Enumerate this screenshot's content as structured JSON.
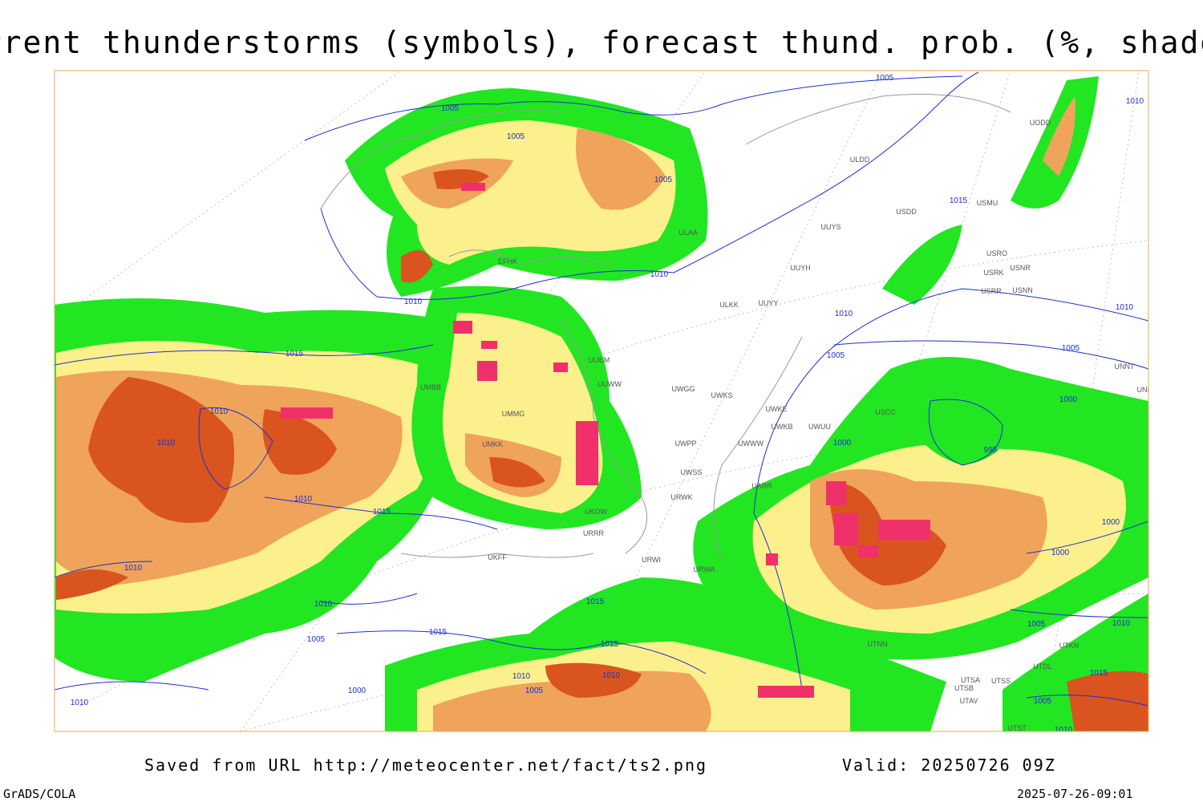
{
  "header": {
    "title": "Current thunderstorms (symbols), forecast thund. prob. (%, shaded)"
  },
  "footer": {
    "source": "Saved from URL http://meteocenter.net/fact/ts2.png",
    "valid": "Valid: 20250726 09Z",
    "software": "GrADS/COLA",
    "timestamp": "2025-07-26-09:01"
  },
  "map": {
    "isobar_labels": [
      1005,
      1010,
      1005,
      1005,
      1005,
      1015,
      1010,
      1010,
      1010,
      1010,
      1015,
      1005,
      1005,
      1000,
      1010,
      1010,
      1000,
      995,
      1010,
      1015,
      1000,
      1000,
      1010,
      1010,
      1015,
      1015,
      1005,
      1015,
      1005,
      1010,
      1015,
      1010,
      1010,
      1005,
      1000,
      1010,
      1005,
      1010
    ],
    "station_labels": [
      "UODD",
      "ULDD",
      "USDD",
      "USMU",
      "UUYS",
      "ULAA",
      "UUYH",
      "USRO",
      "USRK",
      "USNR",
      "USRR",
      "USNN",
      "ULKK",
      "UUYY",
      "EFHK",
      "UUEM",
      "UUWW",
      "UWGG",
      "UWKS",
      "UWKE",
      "UWKB",
      "UWUU",
      "UWWW",
      "UWPP",
      "UWSS",
      "UARR",
      "URWK",
      "UKOW",
      "URRR",
      "URWI",
      "URWA",
      "UKFF",
      "USCC",
      "UNBB",
      "UNNT",
      "UTNN",
      "UTSA",
      "UTSB",
      "UTSS",
      "UTAV",
      "UTST",
      "UTDL",
      "UTKN",
      "UMMG",
      "UMBB",
      "UMKK"
    ]
  }
}
